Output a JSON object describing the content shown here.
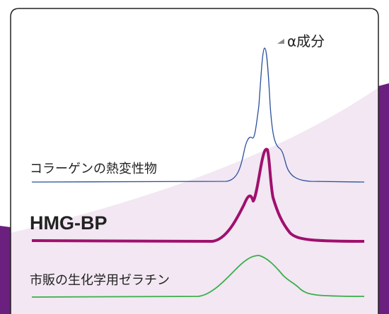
{
  "labels": {
    "alpha": "α成分",
    "collagen": "コラーゲンの熱変性物",
    "hmg": "HMG-BP",
    "gelatin": "市販の生化学用ゼラチン"
  }
}
